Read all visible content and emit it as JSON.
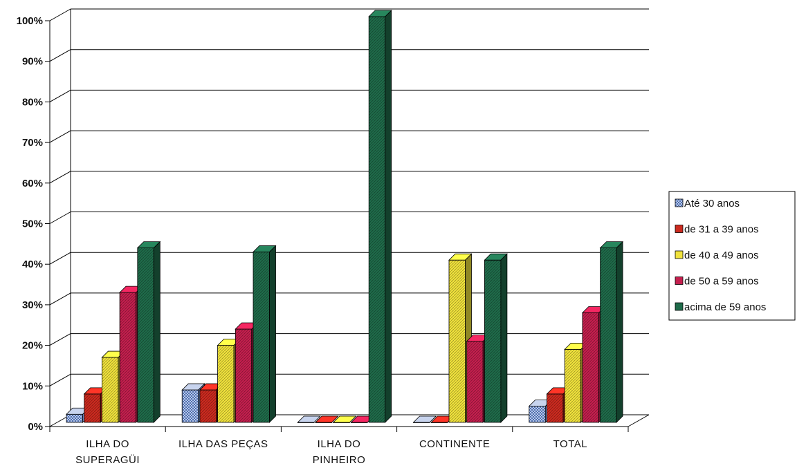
{
  "chart_data": {
    "type": "bar",
    "categories": [
      [
        "ILHA DO",
        "SUPERAGÜI"
      ],
      [
        "ILHA DAS PEÇAS"
      ],
      [
        "ILHA DO",
        "PINHEIRO"
      ],
      [
        "CONTINENTE"
      ],
      [
        "TOTAL"
      ]
    ],
    "series": [
      {
        "name": "Até 30 anos",
        "color": "#7f9fd0",
        "values": [
          2,
          8,
          0,
          0,
          4
        ]
      },
      {
        "name": "de 31 a 39 anos",
        "color": "#cc2a1f",
        "values": [
          7,
          8,
          0,
          0,
          7
        ]
      },
      {
        "name": "de 40 a 49 anos",
        "color": "#f0e23c",
        "values": [
          16,
          19,
          0,
          40,
          18
        ]
      },
      {
        "name": "de 50 a 59 anos",
        "color": "#c41f4e",
        "values": [
          32,
          23,
          0,
          20,
          27
        ]
      },
      {
        "name": "acima de 59 anos",
        "color": "#1f6b4a",
        "values": [
          43,
          42,
          100,
          40,
          43
        ]
      }
    ],
    "yticks": [
      "0%",
      "10%",
      "20%",
      "30%",
      "40%",
      "50%",
      "60%",
      "70%",
      "80%",
      "90%",
      "100%"
    ],
    "ylim": [
      0,
      100
    ],
    "grid": true,
    "legend_position": "right",
    "style": "3d-clustered-column"
  }
}
